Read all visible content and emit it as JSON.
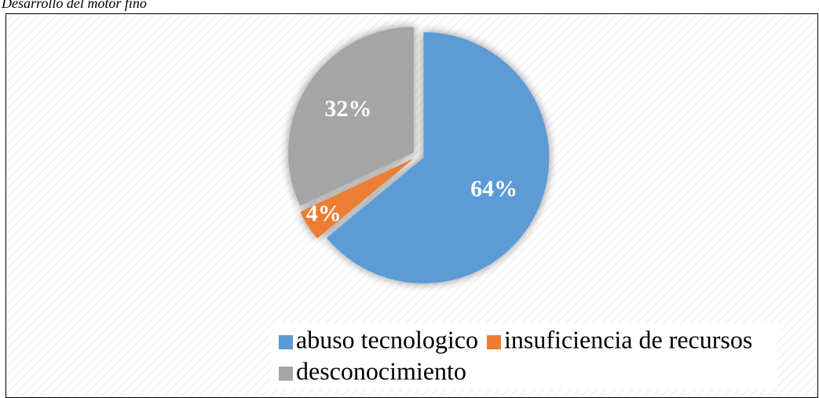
{
  "chart_data": {
    "type": "pie",
    "title": "Desarrollo del motor fino",
    "categories": [
      "abuso tecnologico",
      "insuficiencia de recursos",
      "desconocimiento"
    ],
    "values": [
      64,
      4,
      32
    ],
    "value_labels": [
      "64%",
      "4%",
      "32%"
    ],
    "colors": [
      "#5b9bd5",
      "#ed7d31",
      "#a5a5a5"
    ],
    "legend": "bottom"
  }
}
